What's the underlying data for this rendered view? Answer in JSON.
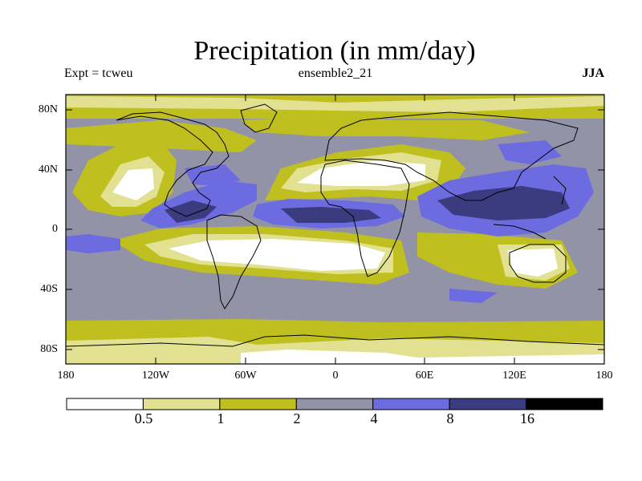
{
  "title": "Precipitation (in mm/day)",
  "subtitle_left": "Expt = tcweu",
  "subtitle_center": "ensemble2_21",
  "subtitle_right": "JJA",
  "y_ticks": [
    "80N",
    "40N",
    "0",
    "40S",
    "80S"
  ],
  "x_ticks": [
    "180",
    "120W",
    "60W",
    "0",
    "60E",
    "120E",
    "180"
  ],
  "colorbar": {
    "levels": [
      "0.5",
      "1",
      "2",
      "4",
      "8",
      "16"
    ],
    "colors": [
      "#ffffff",
      "#e1e191",
      "#bfbf1f",
      "#9393a7",
      "#6c6ce0",
      "#3b3b7f",
      "#000000"
    ]
  },
  "chart_data": {
    "type": "contour-map",
    "title": "Precipitation (in mm/day)",
    "experiment": "tcweu",
    "run": "ensemble2_21",
    "season": "JJA",
    "lon_range": [
      -180,
      180
    ],
    "lat_range": [
      -90,
      90
    ],
    "x_ticks": [
      -180,
      -120,
      -60,
      0,
      60,
      120,
      180
    ],
    "y_ticks": [
      80,
      40,
      0,
      -40,
      -80
    ],
    "contour_levels": [
      0.5,
      1,
      2,
      4,
      8,
      16
    ],
    "units": "mm/day"
  }
}
